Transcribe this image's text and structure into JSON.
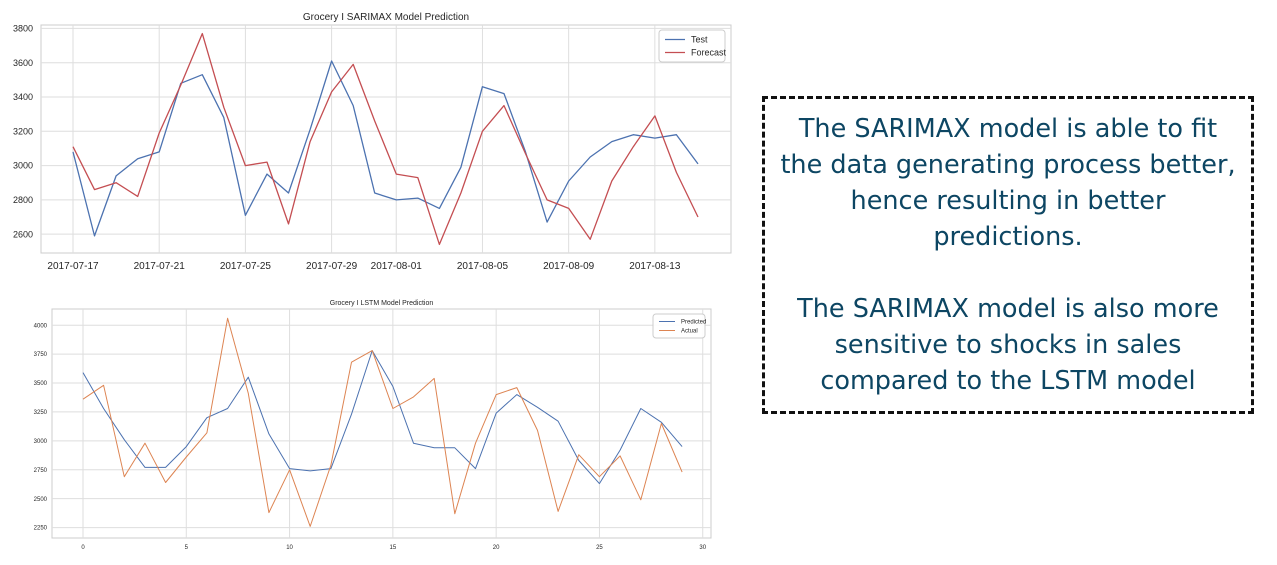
{
  "chart_data": [
    {
      "type": "line",
      "title": "Grocery I SARIMAX Model Prediction",
      "xlabel": "",
      "ylabel": "",
      "x": [
        "2017-07-17",
        "2017-07-18",
        "2017-07-19",
        "2017-07-20",
        "2017-07-21",
        "2017-07-22",
        "2017-07-23",
        "2017-07-24",
        "2017-07-25",
        "2017-07-26",
        "2017-07-27",
        "2017-07-28",
        "2017-07-29",
        "2017-07-30",
        "2017-07-31",
        "2017-08-01",
        "2017-08-02",
        "2017-08-03",
        "2017-08-04",
        "2017-08-05",
        "2017-08-06",
        "2017-08-07",
        "2017-08-08",
        "2017-08-09",
        "2017-08-10",
        "2017-08-11",
        "2017-08-12",
        "2017-08-13",
        "2017-08-14",
        "2017-08-15"
      ],
      "x_ticks": [
        "2017-07-17",
        "2017-07-21",
        "2017-07-25",
        "2017-07-29",
        "2017-08-01",
        "2017-08-05",
        "2017-08-09",
        "2017-08-13"
      ],
      "ylim": [
        2490,
        3820
      ],
      "y_ticks": [
        2600,
        2800,
        3000,
        3200,
        3400,
        3600,
        3800
      ],
      "grid": true,
      "legend_position": "top-right",
      "series": [
        {
          "name": "Test",
          "color": "#4c72b0",
          "values": [
            3080,
            2590,
            2940,
            3040,
            3080,
            3480,
            3530,
            3280,
            2710,
            2950,
            2840,
            3210,
            3610,
            3350,
            2840,
            2800,
            2810,
            2750,
            2990,
            3460,
            3420,
            3080,
            2670,
            2910,
            3050,
            3140,
            3180,
            3160,
            3180,
            3010
          ]
        },
        {
          "name": "Forecast",
          "color": "#c44e52",
          "values": [
            3110,
            2860,
            2900,
            2820,
            3190,
            3470,
            3770,
            3340,
            3000,
            3020,
            2660,
            3140,
            3430,
            3590,
            3260,
            2950,
            2930,
            2540,
            2840,
            3200,
            3350,
            3070,
            2800,
            2750,
            2570,
            2910,
            3110,
            3290,
            2960,
            2700
          ]
        }
      ]
    },
    {
      "type": "line",
      "title": "Grocery I LSTM Model Prediction",
      "xlabel": "",
      "ylabel": "",
      "x": [
        0,
        1,
        2,
        3,
        4,
        5,
        6,
        7,
        8,
        9,
        10,
        11,
        12,
        13,
        14,
        15,
        16,
        17,
        18,
        19,
        20,
        21,
        22,
        23,
        24,
        25,
        26,
        27,
        28,
        29
      ],
      "x_ticks": [
        0,
        5,
        10,
        15,
        20,
        25,
        30
      ],
      "xlim": [
        -1.5,
        30.4
      ],
      "ylim": [
        2160,
        4140
      ],
      "y_ticks": [
        2250,
        2500,
        2750,
        3000,
        3250,
        3500,
        3750,
        4000
      ],
      "grid": true,
      "legend_position": "top-right",
      "series": [
        {
          "name": "Predicted",
          "color": "#4c72b0",
          "values": [
            3590,
            3280,
            3010,
            2770,
            2770,
            2950,
            3200,
            3280,
            3550,
            3060,
            2760,
            2740,
            2760,
            3230,
            3780,
            3470,
            2980,
            2940,
            2940,
            2760,
            3240,
            3400,
            3290,
            3170,
            2830,
            2630,
            2920,
            3280,
            3160,
            2950
          ]
        },
        {
          "name": "Actual",
          "color": "#dd8452",
          "values": [
            3360,
            3480,
            2690,
            2980,
            2640,
            2860,
            3070,
            4060,
            3410,
            2380,
            2750,
            2260,
            2790,
            3680,
            3780,
            3280,
            3380,
            3540,
            2370,
            2980,
            3400,
            3460,
            3090,
            2390,
            2880,
            2690,
            2870,
            2490,
            3150,
            2730
          ]
        }
      ]
    }
  ],
  "note": {
    "paragraph1": "The SARIMAX model is able to fit the data generating process better, hence resulting in better predictions.",
    "paragraph2": "The SARIMAX model is also more sensitive to shocks in sales compared to the LSTM model"
  }
}
